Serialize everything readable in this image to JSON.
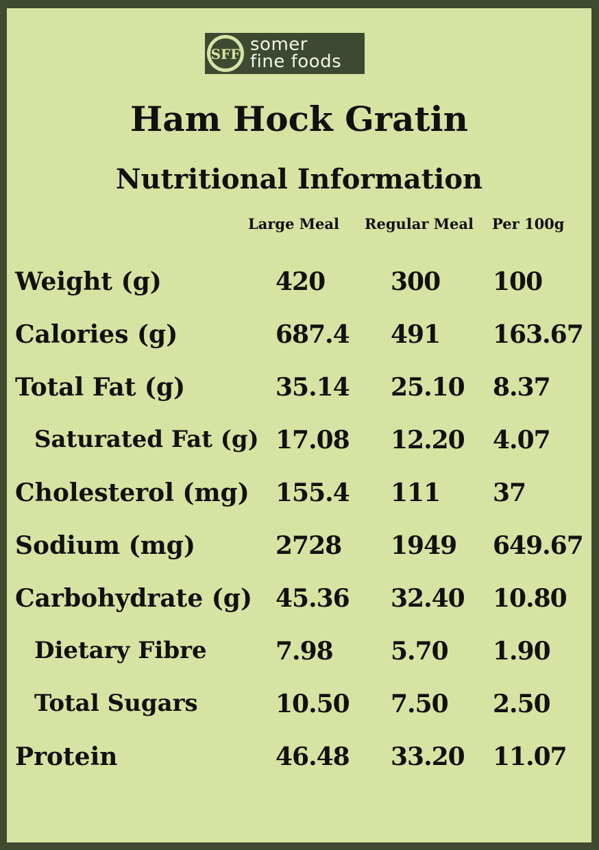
{
  "brand": {
    "logo_letters": "SFF",
    "name_line1": "somer",
    "name_line2": "fine foods",
    "logo_bg": "#3e4932",
    "logo_fg": "#d6e3a2"
  },
  "title": "Ham Hock Gratin",
  "subtitle": "Nutritional Information",
  "columns": [
    "Large Meal",
    "Regular Meal",
    "Per 100g"
  ],
  "rows": [
    {
      "label": "Weight (g)",
      "large": "420",
      "regular": "300",
      "per100": "100",
      "indent": false
    },
    {
      "label": "Calories (g)",
      "large": "687.4",
      "regular": "491",
      "per100": "163.67",
      "indent": false
    },
    {
      "label": "Total Fat (g)",
      "large": "35.14",
      "regular": "25.10",
      "per100": "8.37",
      "indent": false
    },
    {
      "label": "Saturated Fat (g)",
      "large": "17.08",
      "regular": "12.20",
      "per100": "4.07",
      "indent": true
    },
    {
      "label": "Cholesterol (mg)",
      "large": "155.4",
      "regular": "111",
      "per100": "37",
      "indent": false
    },
    {
      "label": "Sodium (mg)",
      "large": "2728",
      "regular": "1949",
      "per100": "649.67",
      "indent": false
    },
    {
      "label": "Carbohydrate (g)",
      "large": "45.36",
      "regular": "32.40",
      "per100": "10.80",
      "indent": false
    },
    {
      "label": "Dietary Fibre",
      "large": "7.98",
      "regular": "5.70",
      "per100": "1.90",
      "indent": true
    },
    {
      "label": "Total Sugars",
      "large": "10.50",
      "regular": "7.50",
      "per100": "2.50",
      "indent": true
    },
    {
      "label": "Protein",
      "large": "46.48",
      "regular": "33.20",
      "per100": "11.07",
      "indent": false
    }
  ],
  "colors": {
    "background": "#d6e3a2",
    "border": "#3f4a30",
    "text": "#111111"
  }
}
